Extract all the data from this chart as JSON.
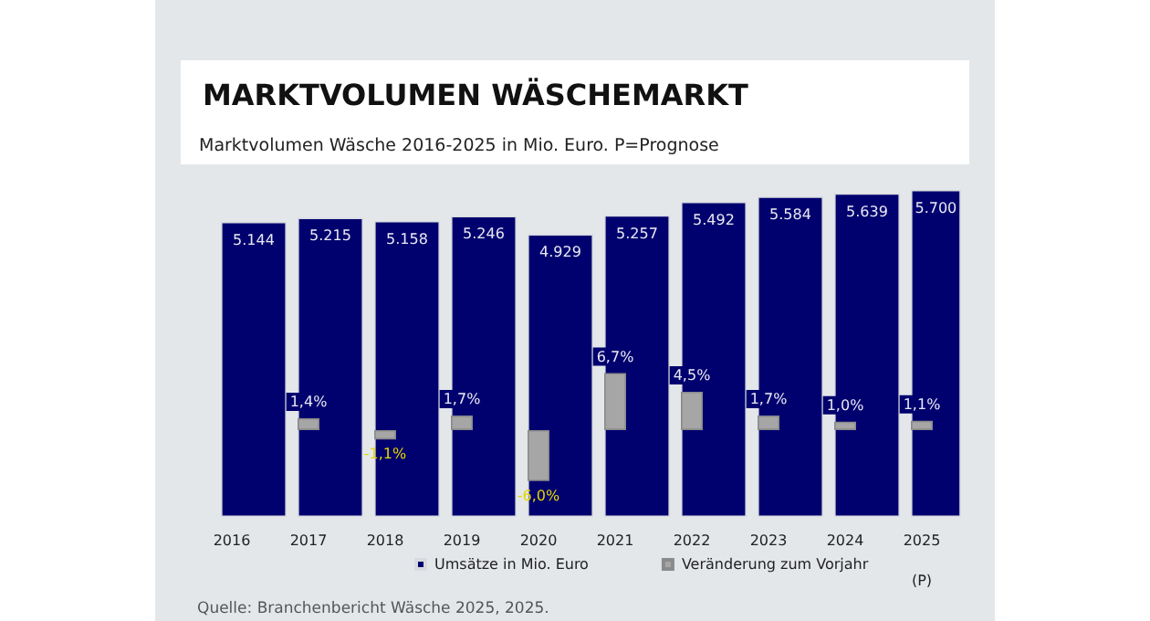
{
  "chart_data": {
    "type": "bar",
    "title": "MARKTVOLUMEN WÄSCHEMARKT",
    "subtitle": "Marktvolumen Wäsche 2016-2025 in Mio. Euro. P=Prognose",
    "categories": [
      "2016",
      "2017",
      "2018",
      "2019",
      "2020",
      "2021",
      "2022",
      "2023",
      "2024",
      "2025\n(P)"
    ],
    "series": [
      {
        "name": "Umsätze in Mio. Euro",
        "color": "#00006e",
        "values": [
          5144,
          5215,
          5158,
          5246,
          4929,
          5257,
          5492,
          5584,
          5639,
          5700
        ],
        "value_labels": [
          "5.144",
          "5.215",
          "5.158",
          "5.246",
          "4.929",
          "5.257",
          "5.492",
          "5.584",
          "5.639",
          "5.700"
        ]
      },
      {
        "name": "Veränderung zum Vorjahr",
        "color": "#a6a6a6",
        "axis": "y2",
        "values": [
          null,
          1.4,
          -1.1,
          1.7,
          -6.0,
          6.7,
          4.5,
          1.7,
          1.0,
          1.1
        ],
        "value_labels": [
          null,
          "1,4%",
          "-1,1%",
          "1,7%",
          "-6,0%",
          "6,7%",
          "4,5%",
          "1,7%",
          "1,0%",
          "1,1%"
        ]
      }
    ],
    "tick_labels": "x",
    "legend": "bottom",
    "annotations": [
      "Quelle: Branchenbericht Wäsche 2025, 2025."
    ]
  }
}
